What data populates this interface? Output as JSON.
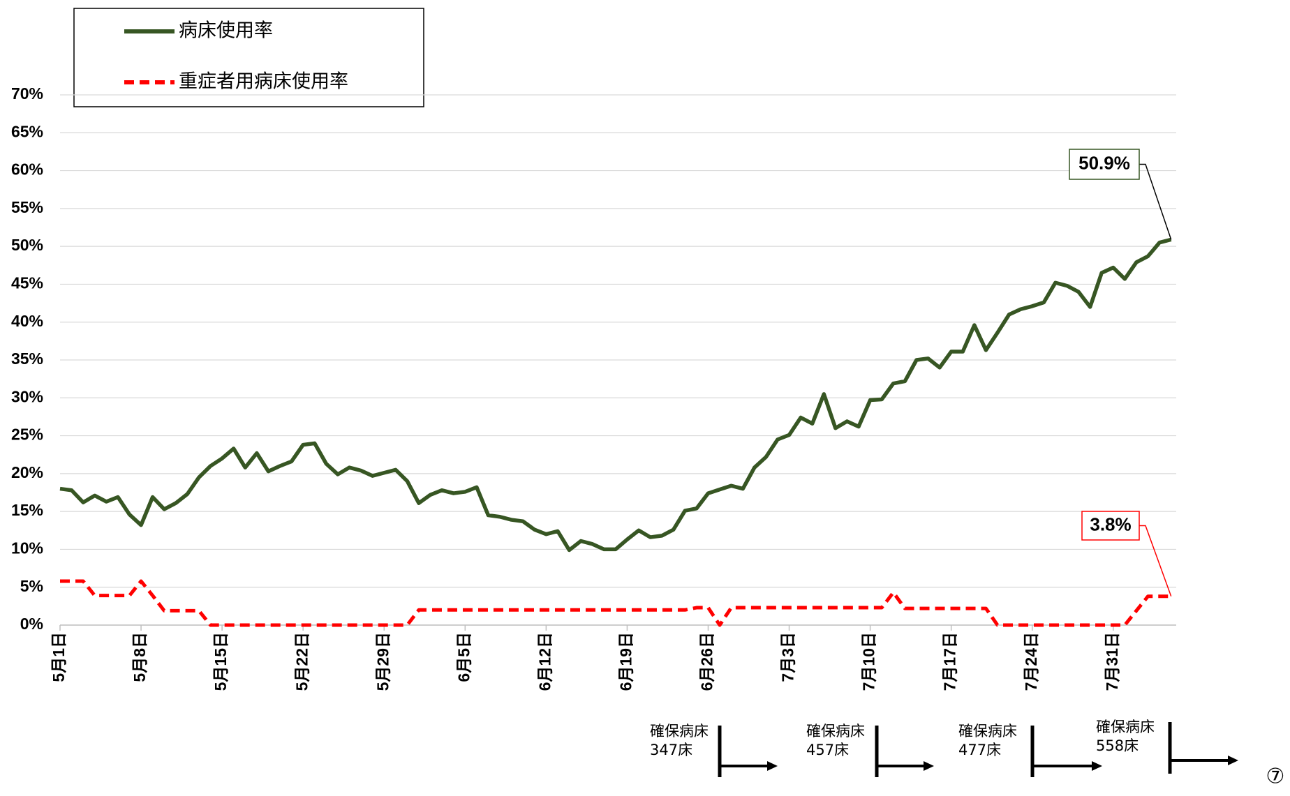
{
  "chart_data": {
    "type": "line",
    "categories": [
      "5月1日",
      null,
      null,
      null,
      null,
      null,
      null,
      "5月8日",
      null,
      null,
      null,
      null,
      null,
      null,
      "5月15日",
      null,
      null,
      null,
      null,
      null,
      null,
      "5月22日",
      null,
      null,
      null,
      null,
      null,
      null,
      "5月29日",
      null,
      null,
      null,
      null,
      null,
      null,
      "6月5日",
      null,
      null,
      null,
      null,
      null,
      null,
      "6月12日",
      null,
      null,
      null,
      null,
      null,
      null,
      "6月19日",
      null,
      null,
      null,
      null,
      null,
      null,
      "6月26日",
      null,
      null,
      null,
      null,
      null,
      null,
      "7月3日",
      null,
      null,
      null,
      null,
      null,
      null,
      "7月10日",
      null,
      null,
      null,
      null,
      null,
      null,
      "7月17日",
      null,
      null,
      null,
      null,
      null,
      null,
      "7月24日",
      null,
      null,
      null,
      null,
      null,
      null,
      "7月31日",
      null,
      null,
      null,
      null,
      null
    ],
    "series": [
      {
        "name": "病床使用率",
        "color": "#375623",
        "dash": false,
        "values": [
          18.0,
          17.8,
          16.2,
          17.1,
          16.3,
          16.9,
          14.6,
          13.2,
          16.9,
          15.3,
          16.1,
          17.3,
          19.5,
          21.0,
          22.0,
          23.3,
          20.8,
          22.7,
          20.3,
          21.0,
          21.6,
          23.8,
          24.0,
          21.3,
          19.9,
          20.8,
          20.4,
          19.7,
          20.1,
          20.5,
          19.0,
          16.1,
          17.2,
          17.8,
          17.4,
          17.6,
          18.2,
          14.5,
          14.3,
          13.9,
          13.7,
          12.6,
          12.0,
          12.4,
          9.9,
          11.1,
          10.7,
          10.0,
          10.0,
          11.3,
          12.5,
          11.6,
          11.8,
          12.6,
          15.1,
          15.4,
          17.4,
          17.9,
          18.4,
          18.0,
          20.8,
          22.2,
          24.5,
          25.1,
          27.4,
          26.6,
          30.5,
          26.0,
          26.9,
          26.2,
          29.7,
          29.8,
          31.9,
          32.2,
          35.0,
          35.2,
          34.0,
          36.1,
          36.1,
          39.6,
          36.3,
          38.6,
          41.0,
          41.7,
          42.1,
          42.6,
          45.2,
          44.8,
          44.0,
          42.0,
          46.5,
          47.2,
          45.7,
          47.9,
          48.7,
          50.5,
          50.9
        ],
        "value_labels": [
          null,
          null,
          null,
          null,
          null,
          null,
          null,
          null,
          null,
          null,
          null,
          null,
          null,
          null,
          null,
          null,
          null,
          null,
          null,
          null,
          null,
          null,
          null,
          null,
          null,
          null,
          null,
          null,
          null,
          null,
          null,
          null,
          null,
          null,
          null,
          null,
          null,
          null,
          null,
          null,
          null,
          null,
          null,
          null,
          null,
          null,
          null,
          null,
          null,
          null,
          null,
          null,
          null,
          null,
          null,
          null,
          null,
          null,
          null,
          null,
          null,
          null,
          null,
          null,
          null,
          null,
          null,
          null,
          null,
          null,
          null,
          null,
          null,
          null,
          null,
          null,
          null,
          null,
          null,
          null,
          null,
          null,
          null,
          null,
          null,
          null,
          null,
          null,
          null,
          null,
          null,
          null,
          null,
          null,
          null,
          null,
          "50.9%"
        ]
      },
      {
        "name": "重症者用病床使用率",
        "color": "#ff0000",
        "dash": true,
        "values": [
          5.8,
          5.8,
          5.8,
          3.9,
          3.9,
          3.9,
          3.9,
          5.8,
          3.9,
          1.9,
          1.9,
          1.9,
          1.9,
          0,
          0,
          0,
          0,
          0,
          0,
          0,
          0,
          0,
          0,
          0,
          0,
          0,
          0,
          0,
          0,
          0,
          0,
          2.0,
          2.0,
          2.0,
          2.0,
          2.0,
          2.0,
          2.0,
          2.0,
          2.0,
          2.0,
          2.0,
          2.0,
          2.0,
          2.0,
          2.0,
          2.0,
          2.0,
          2.0,
          2.0,
          2.0,
          2.0,
          2.0,
          2.0,
          2.0,
          2.3,
          2.3,
          0,
          2.3,
          2.3,
          2.3,
          2.3,
          2.3,
          2.3,
          2.3,
          2.3,
          2.3,
          2.3,
          2.3,
          2.3,
          2.3,
          2.3,
          4.3,
          2.2,
          2.2,
          2.2,
          2.2,
          2.2,
          2.2,
          2.2,
          2.2,
          0,
          0,
          0,
          0,
          0,
          0,
          0,
          0,
          0,
          0,
          0,
          0,
          1.9,
          3.8,
          3.8,
          3.8
        ],
        "value_labels": [
          null,
          null,
          null,
          null,
          null,
          null,
          null,
          null,
          null,
          null,
          null,
          null,
          null,
          null,
          null,
          null,
          null,
          null,
          null,
          null,
          null,
          null,
          null,
          null,
          null,
          null,
          null,
          null,
          null,
          null,
          null,
          null,
          null,
          null,
          null,
          null,
          null,
          null,
          null,
          null,
          null,
          null,
          null,
          null,
          null,
          null,
          null,
          null,
          null,
          null,
          null,
          null,
          null,
          null,
          null,
          null,
          null,
          null,
          null,
          null,
          null,
          null,
          null,
          null,
          null,
          null,
          null,
          null,
          null,
          null,
          null,
          null,
          null,
          null,
          null,
          null,
          null,
          null,
          null,
          null,
          null,
          null,
          null,
          null,
          null,
          null,
          null,
          null,
          null,
          null,
          null,
          null,
          null,
          null,
          null,
          null,
          "3.8%"
        ]
      }
    ],
    "ylim": [
      0,
      70
    ],
    "yticks": [
      {
        "value": 0,
        "label": "0%"
      },
      {
        "value": 5,
        "label": "5%"
      },
      {
        "value": 10,
        "label": "10%"
      },
      {
        "value": 15,
        "label": "15%"
      },
      {
        "value": 20,
        "label": "20%"
      },
      {
        "value": 25,
        "label": "25%"
      },
      {
        "value": 30,
        "label": "30%"
      },
      {
        "value": 35,
        "label": "35%"
      },
      {
        "value": 40,
        "label": "40%"
      },
      {
        "value": 45,
        "label": "45%"
      },
      {
        "value": 50,
        "label": "50%"
      },
      {
        "value": 55,
        "label": "55%"
      },
      {
        "value": 60,
        "label": "60%"
      },
      {
        "value": 65,
        "label": "65%"
      },
      {
        "value": 70,
        "label": "70%"
      }
    ],
    "grid": true,
    "legend": "top-left",
    "annotations": [
      [
        "確保病床",
        "347床"
      ],
      [
        "確保病床",
        "457床"
      ],
      [
        "確保病床",
        "477床"
      ],
      [
        "確保病床",
        "558床"
      ]
    ],
    "page_number": "⑦"
  }
}
